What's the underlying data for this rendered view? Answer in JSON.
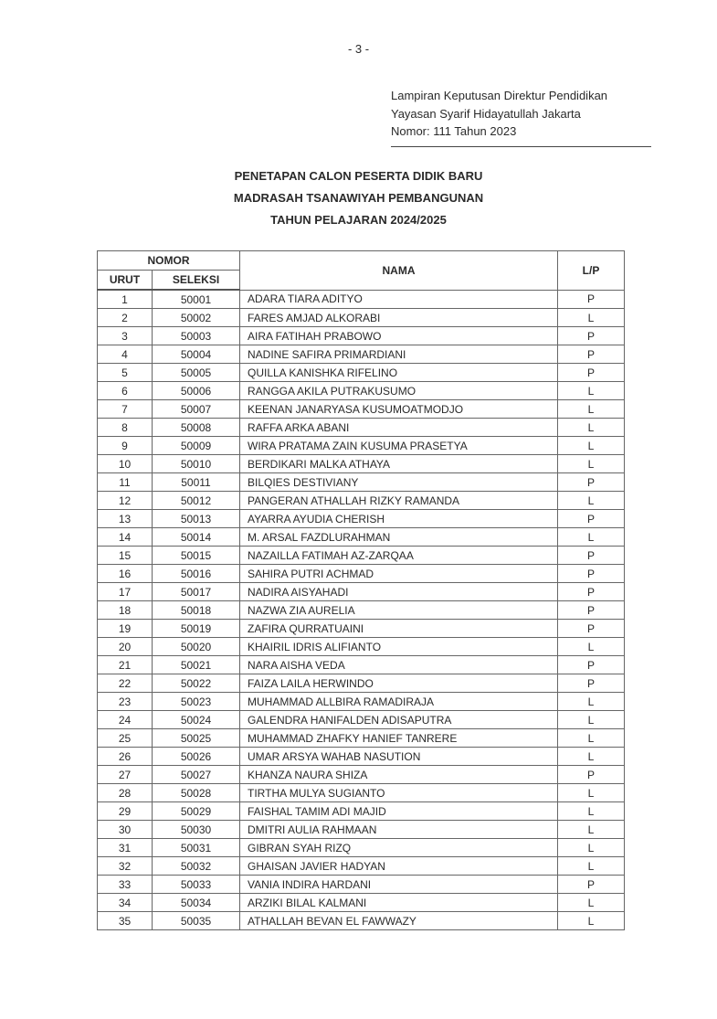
{
  "page_number": "- 3 -",
  "lampiran": [
    "Lampiran Keputusan Direktur Pendidikan",
    "Yayasan Syarif Hidayatullah Jakarta",
    "Nomor: 111 Tahun 2023"
  ],
  "titles": [
    "PENETAPAN CALON PESERTA DIDIK BARU",
    "MADRASAH TSANAWIYAH PEMBANGUNAN",
    "TAHUN PELAJARAN 2024/2025"
  ],
  "table": {
    "headers": {
      "nomor": "NOMOR",
      "urut": "URUT",
      "seleksi": "SELEKSI",
      "nama": "NAMA",
      "lp": "L/P"
    },
    "rows": [
      [
        "1",
        "50001",
        "ADARA TIARA ADITYO",
        "P"
      ],
      [
        "2",
        "50002",
        "FARES AMJAD ALKORABI",
        "L"
      ],
      [
        "3",
        "50003",
        "AIRA FATIHAH PRABOWO",
        "P"
      ],
      [
        "4",
        "50004",
        "NADINE SAFIRA PRIMARDIANI",
        "P"
      ],
      [
        "5",
        "50005",
        "QUILLA KANISHKA RIFELINO",
        "P"
      ],
      [
        "6",
        "50006",
        "RANGGA AKILA PUTRAKUSUMO",
        "L"
      ],
      [
        "7",
        "50007",
        "KEENAN JANARYASA KUSUMOATMODJO",
        "L"
      ],
      [
        "8",
        "50008",
        "RAFFA ARKA ABANI",
        "L"
      ],
      [
        "9",
        "50009",
        "WIRA PRATAMA ZAIN KUSUMA PRASETYA",
        "L"
      ],
      [
        "10",
        "50010",
        "BERDIKARI MALKA ATHAYA",
        "L"
      ],
      [
        "11",
        "50011",
        "BILQIES DESTIVIANY",
        "P"
      ],
      [
        "12",
        "50012",
        "PANGERAN ATHALLAH RIZKY RAMANDA",
        "L"
      ],
      [
        "13",
        "50013",
        "AYARRA AYUDIA CHERISH",
        "P"
      ],
      [
        "14",
        "50014",
        "M. ARSAL FAZDLURAHMAN",
        "L"
      ],
      [
        "15",
        "50015",
        "NAZAILLA FATIMAH AZ-ZARQAA",
        "P"
      ],
      [
        "16",
        "50016",
        "SAHIRA PUTRI ACHMAD",
        "P"
      ],
      [
        "17",
        "50017",
        "NADIRA AISYAHADI",
        "P"
      ],
      [
        "18",
        "50018",
        "NAZWA ZIA AURELIA",
        "P"
      ],
      [
        "19",
        "50019",
        "ZAFIRA QURRATUAINI",
        "P"
      ],
      [
        "20",
        "50020",
        "KHAIRIL IDRIS ALIFIANTO",
        "L"
      ],
      [
        "21",
        "50021",
        "NARA AISHA VEDA",
        "P"
      ],
      [
        "22",
        "50022",
        "FAIZA LAILA HERWINDO",
        "P"
      ],
      [
        "23",
        "50023",
        "MUHAMMAD ALLBIRA RAMADIRAJA",
        "L"
      ],
      [
        "24",
        "50024",
        "GALENDRA HANIFALDEN ADISAPUTRA",
        "L"
      ],
      [
        "25",
        "50025",
        "MUHAMMAD ZHAFKY HANIEF TANRERE",
        "L"
      ],
      [
        "26",
        "50026",
        "UMAR ARSYA WAHAB NASUTION",
        "L"
      ],
      [
        "27",
        "50027",
        "KHANZA NAURA SHIZA",
        "P"
      ],
      [
        "28",
        "50028",
        "TIRTHA MULYA SUGIANTO",
        "L"
      ],
      [
        "29",
        "50029",
        "FAISHAL TAMIM ADI MAJID",
        "L"
      ],
      [
        "30",
        "50030",
        "DMITRI AULIA RAHMAAN",
        "L"
      ],
      [
        "31",
        "50031",
        "GIBRAN SYAH RIZQ",
        "L"
      ],
      [
        "32",
        "50032",
        "GHAISAN JAVIER HADYAN",
        "L"
      ],
      [
        "33",
        "50033",
        "VANIA INDIRA HARDANI",
        "P"
      ],
      [
        "34",
        "50034",
        "ARZIKI BILAL KALMANI",
        "L"
      ],
      [
        "35",
        "50035",
        "ATHALLAH BEVAN EL FAWWAZY",
        "L"
      ]
    ]
  }
}
